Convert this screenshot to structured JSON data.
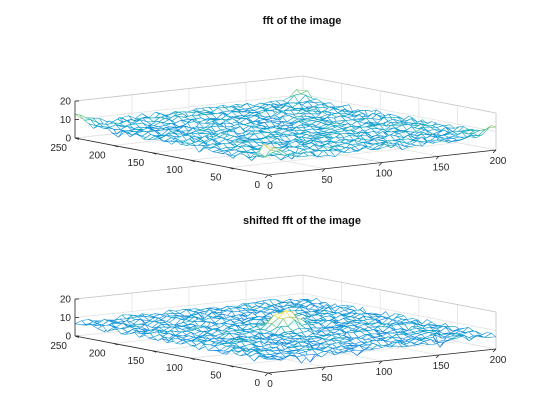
{
  "chart_data": [
    {
      "type": "surface",
      "title": "fft of the image",
      "xlim": [
        0,
        200
      ],
      "ylim": [
        0,
        250
      ],
      "zlim": [
        0,
        20
      ],
      "x_ticks": [
        "0",
        "50",
        "100",
        "150",
        "200"
      ],
      "y_ticks": [
        "0",
        "50",
        "100",
        "150",
        "200",
        "250"
      ],
      "z_ticks": [
        "0",
        "10",
        "20"
      ],
      "grid": true,
      "colormap": "parula",
      "z_baseline": 8,
      "z_spread": 1.5,
      "peaks": [
        {
          "x": 0,
          "y": 0,
          "z": 17
        },
        {
          "x": 200,
          "y": 0,
          "z": 13
        },
        {
          "x": 0,
          "y": 250,
          "z": 13
        },
        {
          "x": 200,
          "y": 250,
          "z": 13
        }
      ]
    },
    {
      "type": "surface",
      "title": "shifted fft of the image",
      "xlim": [
        0,
        200
      ],
      "ylim": [
        0,
        250
      ],
      "zlim": [
        0,
        20
      ],
      "x_ticks": [
        "0",
        "50",
        "100",
        "150",
        "200"
      ],
      "y_ticks": [
        "0",
        "50",
        "100",
        "150",
        "200",
        "250"
      ],
      "z_ticks": [
        "0",
        "10",
        "20"
      ],
      "grid": true,
      "colormap": "parula",
      "z_baseline": 7.5,
      "z_spread": 1.5,
      "peaks": [
        {
          "x": 100,
          "y": 125,
          "z": 17
        }
      ]
    }
  ]
}
